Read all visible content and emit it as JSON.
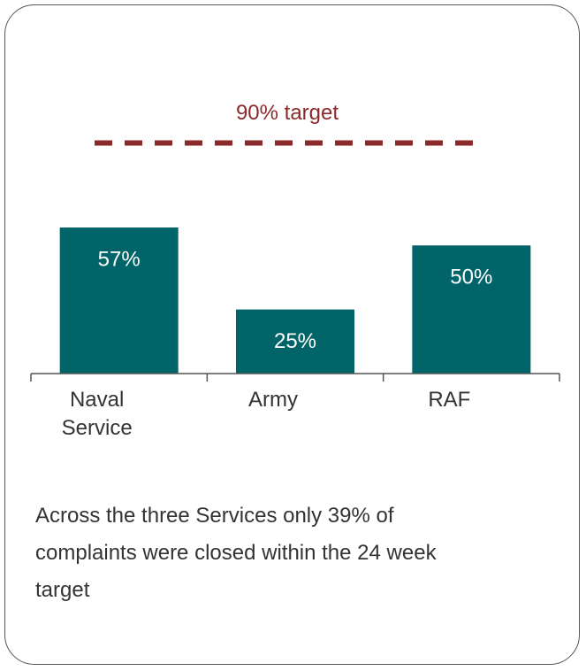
{
  "chart_data": {
    "type": "bar",
    "categories": [
      "Naval Service",
      "Army",
      "RAF"
    ],
    "values": [
      57,
      25,
      50
    ],
    "value_labels": [
      "57%",
      "25%",
      "50%"
    ],
    "color": "#006468",
    "ylim": [
      0,
      100
    ],
    "target": {
      "value": 90,
      "label": "90% target",
      "color": "#8b2a2a"
    },
    "note": "Across the three Services only 39% of complaints were closed within the 24 week target"
  }
}
